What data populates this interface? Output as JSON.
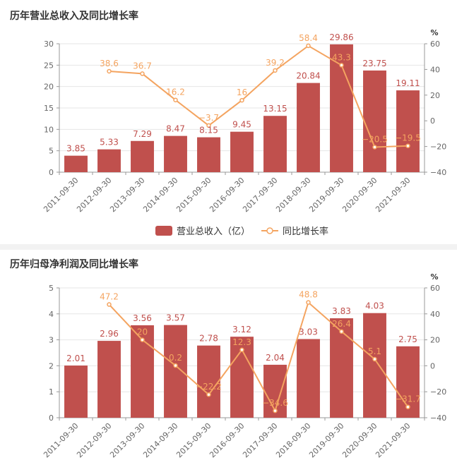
{
  "charts": [
    {
      "title": "历年营业总收入及同比增长率",
      "right_unit": "%",
      "legend": {
        "bar_label": "营业总收入（亿）",
        "line_label": "同比增长率"
      },
      "legend_placement": "bottom-center"
    },
    {
      "title": "历年归母净利润及同比增长率",
      "right_unit": "%",
      "legend": null,
      "legend_placement": "none"
    }
  ],
  "colors": {
    "bar": "#c0504d",
    "line": "#f4a460",
    "axis": "#999999",
    "grid": "#e6e6e6",
    "label": "#666666"
  },
  "chart_data": [
    {
      "type": "bar",
      "categories": [
        "2011-09-30",
        "2012-09-30",
        "2013-09-30",
        "2014-09-30",
        "2015-09-30",
        "2016-09-30",
        "2017-09-30",
        "2018-09-30",
        "2019-09-30",
        "2020-09-30",
        "2021-09-30"
      ],
      "series": [
        {
          "name": "营业总收入（亿）",
          "type": "bar",
          "axis": "left",
          "values": [
            3.85,
            5.33,
            7.29,
            8.47,
            8.15,
            9.45,
            13.15,
            20.84,
            29.86,
            23.75,
            19.11
          ],
          "labels": [
            "3.85",
            "5.33",
            "7.29",
            "8.47",
            "8.15",
            "9.45",
            "13.15",
            "20.84",
            "29.86",
            "23.75",
            "19.11"
          ]
        },
        {
          "name": "同比增长率",
          "type": "line",
          "axis": "right",
          "values": [
            null,
            38.6,
            36.7,
            16.2,
            -3.7,
            16,
            39.2,
            58.4,
            43.3,
            -20.5,
            -19.5
          ],
          "labels": [
            "",
            "38.6",
            "36.7",
            "16.2",
            "−3.7",
            "16",
            "39.2",
            "58.4",
            "43.3",
            "−20.5",
            "−19.5"
          ]
        }
      ],
      "ylim_left": [
        0,
        30
      ],
      "yticks_left": [
        "0",
        "5",
        "10",
        "15",
        "20",
        "25",
        "30"
      ],
      "ylim_right": [
        -40,
        60
      ],
      "yticks_right": [
        "−40",
        "−20",
        "0",
        "20",
        "40",
        "60"
      ],
      "grid": true
    },
    {
      "type": "bar",
      "categories": [
        "2011-09-30",
        "2012-09-30",
        "2013-09-30",
        "2014-09-30",
        "2015-09-30",
        "2016-09-30",
        "2017-09-30",
        "2018-09-30",
        "2019-09-30",
        "2020-09-30",
        "2021-09-30"
      ],
      "series": [
        {
          "name": "",
          "type": "bar",
          "axis": "left",
          "values": [
            2.01,
            2.96,
            3.56,
            3.57,
            2.78,
            3.12,
            2.04,
            3.03,
            3.83,
            4.03,
            2.75
          ],
          "labels": [
            "2.01",
            "2.96",
            "3.56",
            "3.57",
            "2.78",
            "3.12",
            "2.04",
            "3.03",
            "3.83",
            "4.03",
            "2.75"
          ]
        },
        {
          "name": "",
          "type": "line",
          "axis": "right",
          "values": [
            null,
            47.2,
            20,
            0.2,
            -22.2,
            12.3,
            -34.6,
            48.8,
            26.4,
            5.1,
            -31.7
          ],
          "labels": [
            "",
            "47.2",
            "20",
            "0.2",
            "−22.2",
            "12.3",
            "−34.6",
            "48.8",
            "26.4",
            "5.1",
            "−31.7"
          ]
        }
      ],
      "ylim_left": [
        0,
        5
      ],
      "yticks_left": [
        "0",
        "1",
        "2",
        "3",
        "4",
        "5"
      ],
      "ylim_right": [
        -40,
        60
      ],
      "yticks_right": [
        "−40",
        "−20",
        "0",
        "20",
        "40",
        "60"
      ],
      "grid": true
    }
  ]
}
